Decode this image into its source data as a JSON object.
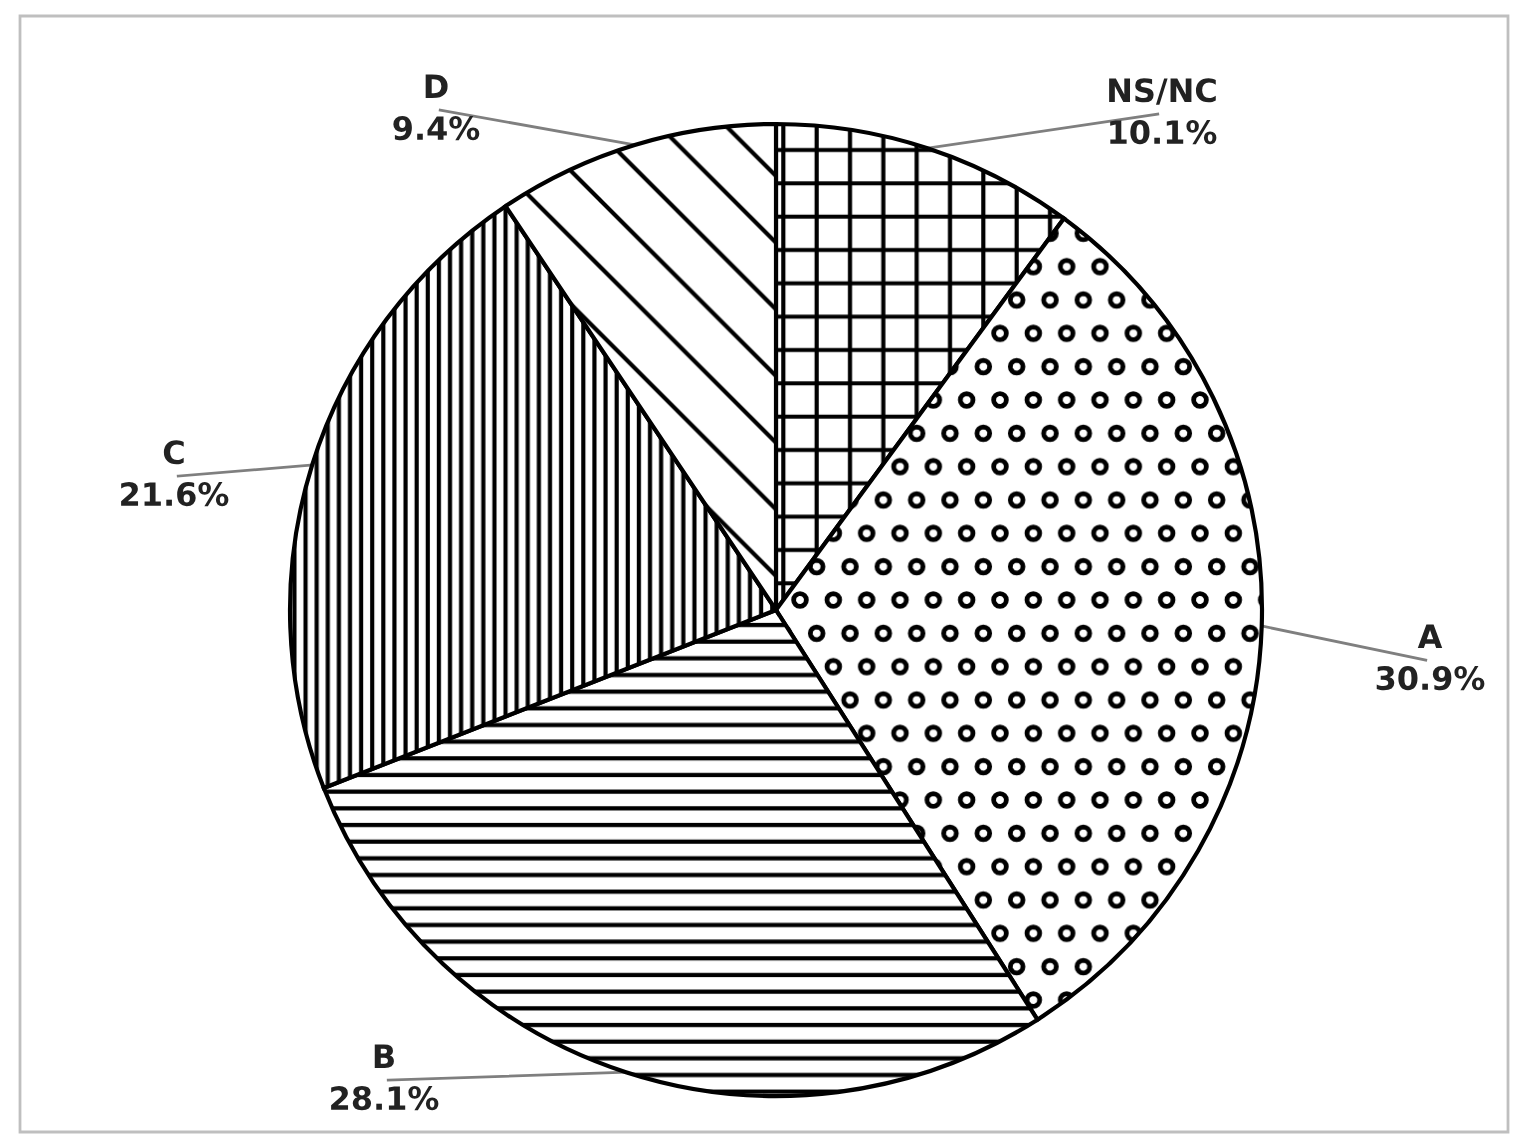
{
  "chart_data": {
    "type": "pie",
    "categories": [
      "NS/NC",
      "A",
      "B",
      "C",
      "D"
    ],
    "values": [
      10.1,
      30.9,
      28.1,
      21.6,
      9.4
    ],
    "value_labels": [
      "10.1%",
      "30.9%",
      "28.1%",
      "21.6%",
      "9.4%"
    ],
    "colors": [
      "#000000",
      "#000000",
      "#000000",
      "#000000",
      "#000000"
    ]
  }
}
